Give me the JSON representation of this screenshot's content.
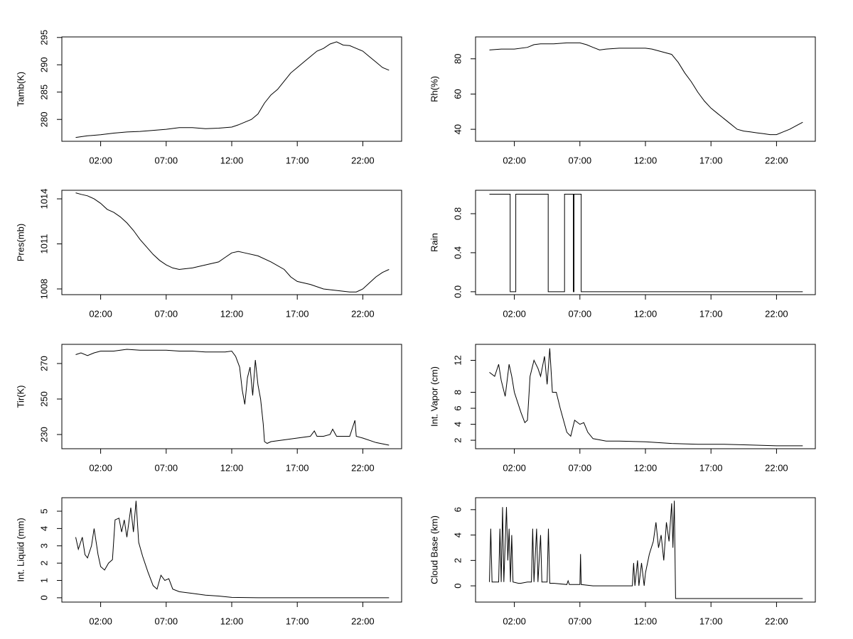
{
  "chart_data": [
    {
      "type": "line",
      "ylabel": "Tamb(K)",
      "color": "#000000",
      "x": [
        0.1,
        1,
        2,
        3,
        4,
        5,
        6,
        7,
        8,
        9,
        10,
        11,
        12,
        12.5,
        13,
        13.5,
        14,
        14.5,
        15,
        15.5,
        16,
        16.5,
        17,
        17.5,
        18,
        18.5,
        19,
        19.5,
        20,
        20.5,
        21,
        21.5,
        22,
        22.5,
        23,
        23.5,
        24
      ],
      "values": [
        276.7,
        277,
        277.2,
        277.5,
        277.7,
        277.8,
        278,
        278.2,
        278.5,
        278.5,
        278.3,
        278.4,
        278.6,
        279,
        279.5,
        280,
        281,
        283,
        284.5,
        285.5,
        287,
        288.5,
        289.5,
        290.5,
        291.5,
        292.5,
        293,
        293.8,
        294.2,
        293.6,
        293.5,
        293,
        292.5,
        291.5,
        290.5,
        289.5,
        289
      ],
      "xlim": [
        -0.96,
        24.96
      ],
      "xticks": [
        {
          "value": 2,
          "label": "02:00"
        },
        {
          "value": 7,
          "label": "07:00"
        },
        {
          "value": 12,
          "label": "12:00"
        },
        {
          "value": 17,
          "label": "17:00"
        },
        {
          "value": 22,
          "label": "22:00"
        }
      ],
      "ylim": [
        276,
        295.1
      ],
      "yticks": [
        280,
        285,
        290,
        295
      ]
    },
    {
      "type": "line",
      "ylabel": "Rh(%)",
      "color": "#000000",
      "x": [
        0.1,
        1,
        2,
        3,
        3.5,
        4,
        5,
        6,
        7,
        7.5,
        8,
        8.5,
        9,
        10,
        11,
        12,
        12.5,
        13,
        14,
        14.5,
        15,
        15.5,
        16,
        16.5,
        17,
        17.5,
        18,
        18.5,
        19,
        19.5,
        20,
        20.5,
        21,
        21.5,
        22,
        22.5,
        23,
        23.5,
        24
      ],
      "values": [
        85,
        85.5,
        85.5,
        86.5,
        88,
        88.5,
        88.5,
        89,
        89,
        88,
        86.5,
        85,
        85.5,
        86,
        86,
        86,
        85.5,
        84.5,
        82.5,
        78,
        72,
        67,
        61,
        56,
        52,
        49,
        46,
        43,
        40,
        39,
        38.5,
        38,
        37.5,
        37,
        37,
        38.5,
        40,
        42,
        44
      ],
      "xlim": [
        -0.96,
        24.96
      ],
      "xticks": [
        {
          "value": 2,
          "label": "02:00"
        },
        {
          "value": 7,
          "label": "07:00"
        },
        {
          "value": 12,
          "label": "12:00"
        },
        {
          "value": 17,
          "label": "17:00"
        },
        {
          "value": 22,
          "label": "22:00"
        }
      ],
      "ylim": [
        33.2,
        92.4
      ],
      "yticks": [
        40,
        60,
        80
      ]
    },
    {
      "type": "line",
      "ylabel": "Pres(mb)",
      "color": "#000000",
      "x": [
        0.1,
        0.5,
        1,
        1.5,
        2,
        2.5,
        3,
        3.5,
        4,
        4.5,
        5,
        5.5,
        6,
        6.5,
        7,
        7.5,
        8,
        9,
        10,
        11,
        11.5,
        12,
        12.5,
        13,
        14,
        15,
        16,
        16.5,
        17,
        18,
        19,
        20,
        21,
        21.5,
        22,
        22.5,
        23,
        23.5,
        24
      ],
      "values": [
        1014.4,
        1014.3,
        1014.2,
        1014,
        1013.7,
        1013.3,
        1013.1,
        1012.8,
        1012.4,
        1011.9,
        1011.3,
        1010.8,
        1010.3,
        1009.9,
        1009.6,
        1009.4,
        1009.3,
        1009.4,
        1009.6,
        1009.8,
        1010.1,
        1010.4,
        1010.5,
        1010.4,
        1010.2,
        1009.8,
        1009.3,
        1008.8,
        1008.5,
        1008.3,
        1008,
        1007.9,
        1007.8,
        1007.8,
        1008,
        1008.4,
        1008.8,
        1009.1,
        1009.3
      ],
      "xlim": [
        -0.96,
        24.96
      ],
      "xticks": [
        {
          "value": 2,
          "label": "02:00"
        },
        {
          "value": 7,
          "label": "07:00"
        },
        {
          "value": 12,
          "label": "12:00"
        },
        {
          "value": 17,
          "label": "17:00"
        },
        {
          "value": 22,
          "label": "22:00"
        }
      ],
      "ylim": [
        1007.62,
        1014.57
      ],
      "yticks": [
        1008,
        1011,
        1014
      ]
    },
    {
      "type": "line",
      "ylabel": "Rain",
      "color": "#000000",
      "x": [
        0.1,
        1.68,
        1.68,
        2.11,
        2.11,
        4.58,
        4.58,
        5.83,
        5.83,
        6.5,
        6.5,
        6.55,
        6.55,
        7.1,
        7.1,
        24
      ],
      "values": [
        1,
        1,
        0,
        0,
        1,
        1,
        0,
        0,
        1,
        1,
        0,
        0,
        1,
        1,
        0,
        0
      ],
      "xlim": [
        -0.96,
        24.96
      ],
      "xticks": [
        {
          "value": 2,
          "label": "02:00"
        },
        {
          "value": 7,
          "label": "07:00"
        },
        {
          "value": 12,
          "label": "12:00"
        },
        {
          "value": 17,
          "label": "17:00"
        },
        {
          "value": 22,
          "label": "22:00"
        }
      ],
      "ylim": [
        -0.03,
        1.04
      ],
      "yticks": [
        {
          "value": 0,
          "label": "0.0"
        },
        0.4,
        0.8
      ]
    },
    {
      "type": "line",
      "ylabel": "Tir(K)",
      "color": "#000000",
      "x": [
        0.1,
        0.5,
        1,
        1.5,
        2,
        3,
        4,
        5,
        6,
        7,
        8,
        9,
        10,
        11,
        11.5,
        12,
        12.3,
        12.6,
        12.8,
        13,
        13.2,
        13.4,
        13.6,
        13.8,
        14,
        14.2,
        14.4,
        14.5,
        14.7,
        15,
        16,
        17,
        18,
        18.3,
        18.5,
        19,
        19.5,
        19.7,
        20,
        21,
        21.4,
        21.5,
        22,
        23,
        24
      ],
      "values": [
        275,
        276,
        274.5,
        276,
        277,
        277,
        278,
        277.5,
        277.5,
        277.5,
        277,
        277,
        276.5,
        276.5,
        276.5,
        277,
        274,
        268,
        255,
        247,
        262,
        268,
        252,
        272,
        258,
        250,
        236,
        226,
        225,
        226,
        227,
        228,
        229,
        232,
        229,
        229,
        230,
        233,
        229,
        229,
        238,
        229,
        228,
        225.5,
        224
      ],
      "xlim": [
        -0.96,
        24.96
      ],
      "xticks": [
        {
          "value": 2,
          "label": "02:00"
        },
        {
          "value": 7,
          "label": "07:00"
        },
        {
          "value": 12,
          "label": "12:00"
        },
        {
          "value": 17,
          "label": "17:00"
        },
        {
          "value": 22,
          "label": "22:00"
        }
      ],
      "ylim": [
        222,
        280.8
      ],
      "yticks": [
        230,
        250,
        270
      ]
    },
    {
      "type": "line",
      "ylabel": "Int. Vapor (cm)",
      "color": "#000000",
      "x": [
        0.1,
        0.5,
        0.8,
        1,
        1.3,
        1.6,
        1.8,
        2,
        2.5,
        2.8,
        3,
        3.2,
        3.5,
        3.8,
        4,
        4.3,
        4.5,
        4.7,
        4.9,
        5.2,
        5.5,
        6,
        6.3,
        6.6,
        7,
        7.3,
        7.6,
        8,
        9,
        10,
        12,
        14,
        16,
        18,
        20,
        22,
        24
      ],
      "values": [
        10.5,
        10,
        11.5,
        9.5,
        7.5,
        11.5,
        10,
        8,
        5.5,
        4.2,
        4.5,
        10,
        12,
        11,
        10,
        12.5,
        9,
        13.5,
        8,
        8,
        6,
        3,
        2.5,
        4.5,
        4,
        4.2,
        3,
        2.2,
        1.9,
        1.9,
        1.8,
        1.6,
        1.5,
        1.5,
        1.4,
        1.3,
        1.3
      ],
      "xlim": [
        -0.96,
        24.96
      ],
      "xticks": [
        {
          "value": 2,
          "label": "02:00"
        },
        {
          "value": 7,
          "label": "07:00"
        },
        {
          "value": 12,
          "label": "12:00"
        },
        {
          "value": 17,
          "label": "17:00"
        },
        {
          "value": 22,
          "label": "22:00"
        }
      ],
      "ylim": [
        0.94,
        14
      ],
      "yticks": [
        2,
        4,
        6,
        8,
        12
      ]
    },
    {
      "type": "line",
      "ylabel": "Int. Liquid (mm)",
      "color": "#000000",
      "x": [
        0.1,
        0.3,
        0.6,
        0.8,
        1,
        1.3,
        1.5,
        1.8,
        2,
        2.3,
        2.6,
        2.9,
        3.1,
        3.4,
        3.6,
        3.8,
        4,
        4.3,
        4.5,
        4.7,
        4.9,
        5.2,
        5.6,
        6,
        6.3,
        6.6,
        6.9,
        7.2,
        7.5,
        8,
        9,
        10,
        11,
        12,
        14,
        24
      ],
      "values": [
        3.5,
        2.8,
        3.5,
        2.5,
        2.3,
        3,
        4,
        2.5,
        1.8,
        1.6,
        2,
        2.2,
        4.5,
        4.6,
        3.8,
        4.5,
        3.5,
        5.2,
        3.8,
        5.6,
        3.2,
        2.4,
        1.5,
        0.7,
        0.5,
        1.3,
        1,
        1.1,
        0.5,
        0.35,
        0.25,
        0.15,
        0.1,
        0.02,
        0,
        0
      ],
      "xlim": [
        -0.96,
        24.96
      ],
      "xticks": [
        {
          "value": 2,
          "label": "02:00"
        },
        {
          "value": 7,
          "label": "07:00"
        },
        {
          "value": 12,
          "label": "12:00"
        },
        {
          "value": 17,
          "label": "17:00"
        },
        {
          "value": 22,
          "label": "22:00"
        }
      ],
      "ylim": [
        -0.25,
        5.78
      ],
      "yticks": [
        0,
        1,
        2,
        3,
        4,
        5
      ]
    },
    {
      "type": "line",
      "ylabel": "Cloud Base (km)",
      "color": "#000000",
      "x": [
        0.1,
        0.2,
        0.3,
        0.8,
        0.9,
        1,
        1.1,
        1.2,
        1.4,
        1.5,
        1.6,
        1.7,
        1.8,
        1.9,
        2.3,
        2.5,
        3,
        3.3,
        3.4,
        3.5,
        3.7,
        3.8,
        4,
        4.1,
        4.5,
        4.6,
        4.7,
        5,
        6,
        6.1,
        6.2,
        7,
        7.05,
        7.1,
        8,
        10,
        11,
        11.1,
        11.2,
        11.4,
        11.5,
        11.7,
        11.9,
        12,
        12.3,
        12.6,
        12.8,
        13,
        13.2,
        13.4,
        13.6,
        13.8,
        14,
        14.1,
        14.2,
        14.3,
        24
      ],
      "values": [
        0.3,
        4.5,
        0.3,
        0.3,
        4.5,
        0.3,
        6.2,
        0.3,
        6.2,
        2,
        4.5,
        0.3,
        4,
        0.3,
        0.2,
        0.2,
        0.3,
        0.3,
        4.5,
        0.3,
        4.5,
        0.3,
        4,
        0.3,
        0.3,
        4.5,
        0.2,
        0.2,
        0.1,
        0.4,
        0.1,
        0.1,
        2.5,
        0.1,
        0,
        0,
        0,
        1.8,
        0,
        2,
        0,
        1.8,
        0,
        1,
        2.5,
        3.5,
        5,
        3,
        4,
        2,
        5,
        3.5,
        6.5,
        3,
        6.7,
        -1,
        -1
      ],
      "xlim": [
        -0.96,
        24.96
      ],
      "xticks": [
        {
          "value": 2,
          "label": "02:00"
        },
        {
          "value": 7,
          "label": "07:00"
        },
        {
          "value": 12,
          "label": "12:00"
        },
        {
          "value": 17,
          "label": "17:00"
        },
        {
          "value": 22,
          "label": "22:00"
        }
      ],
      "ylim": [
        -1.28,
        6.94
      ],
      "yticks": [
        0,
        2,
        4,
        6
      ]
    }
  ]
}
